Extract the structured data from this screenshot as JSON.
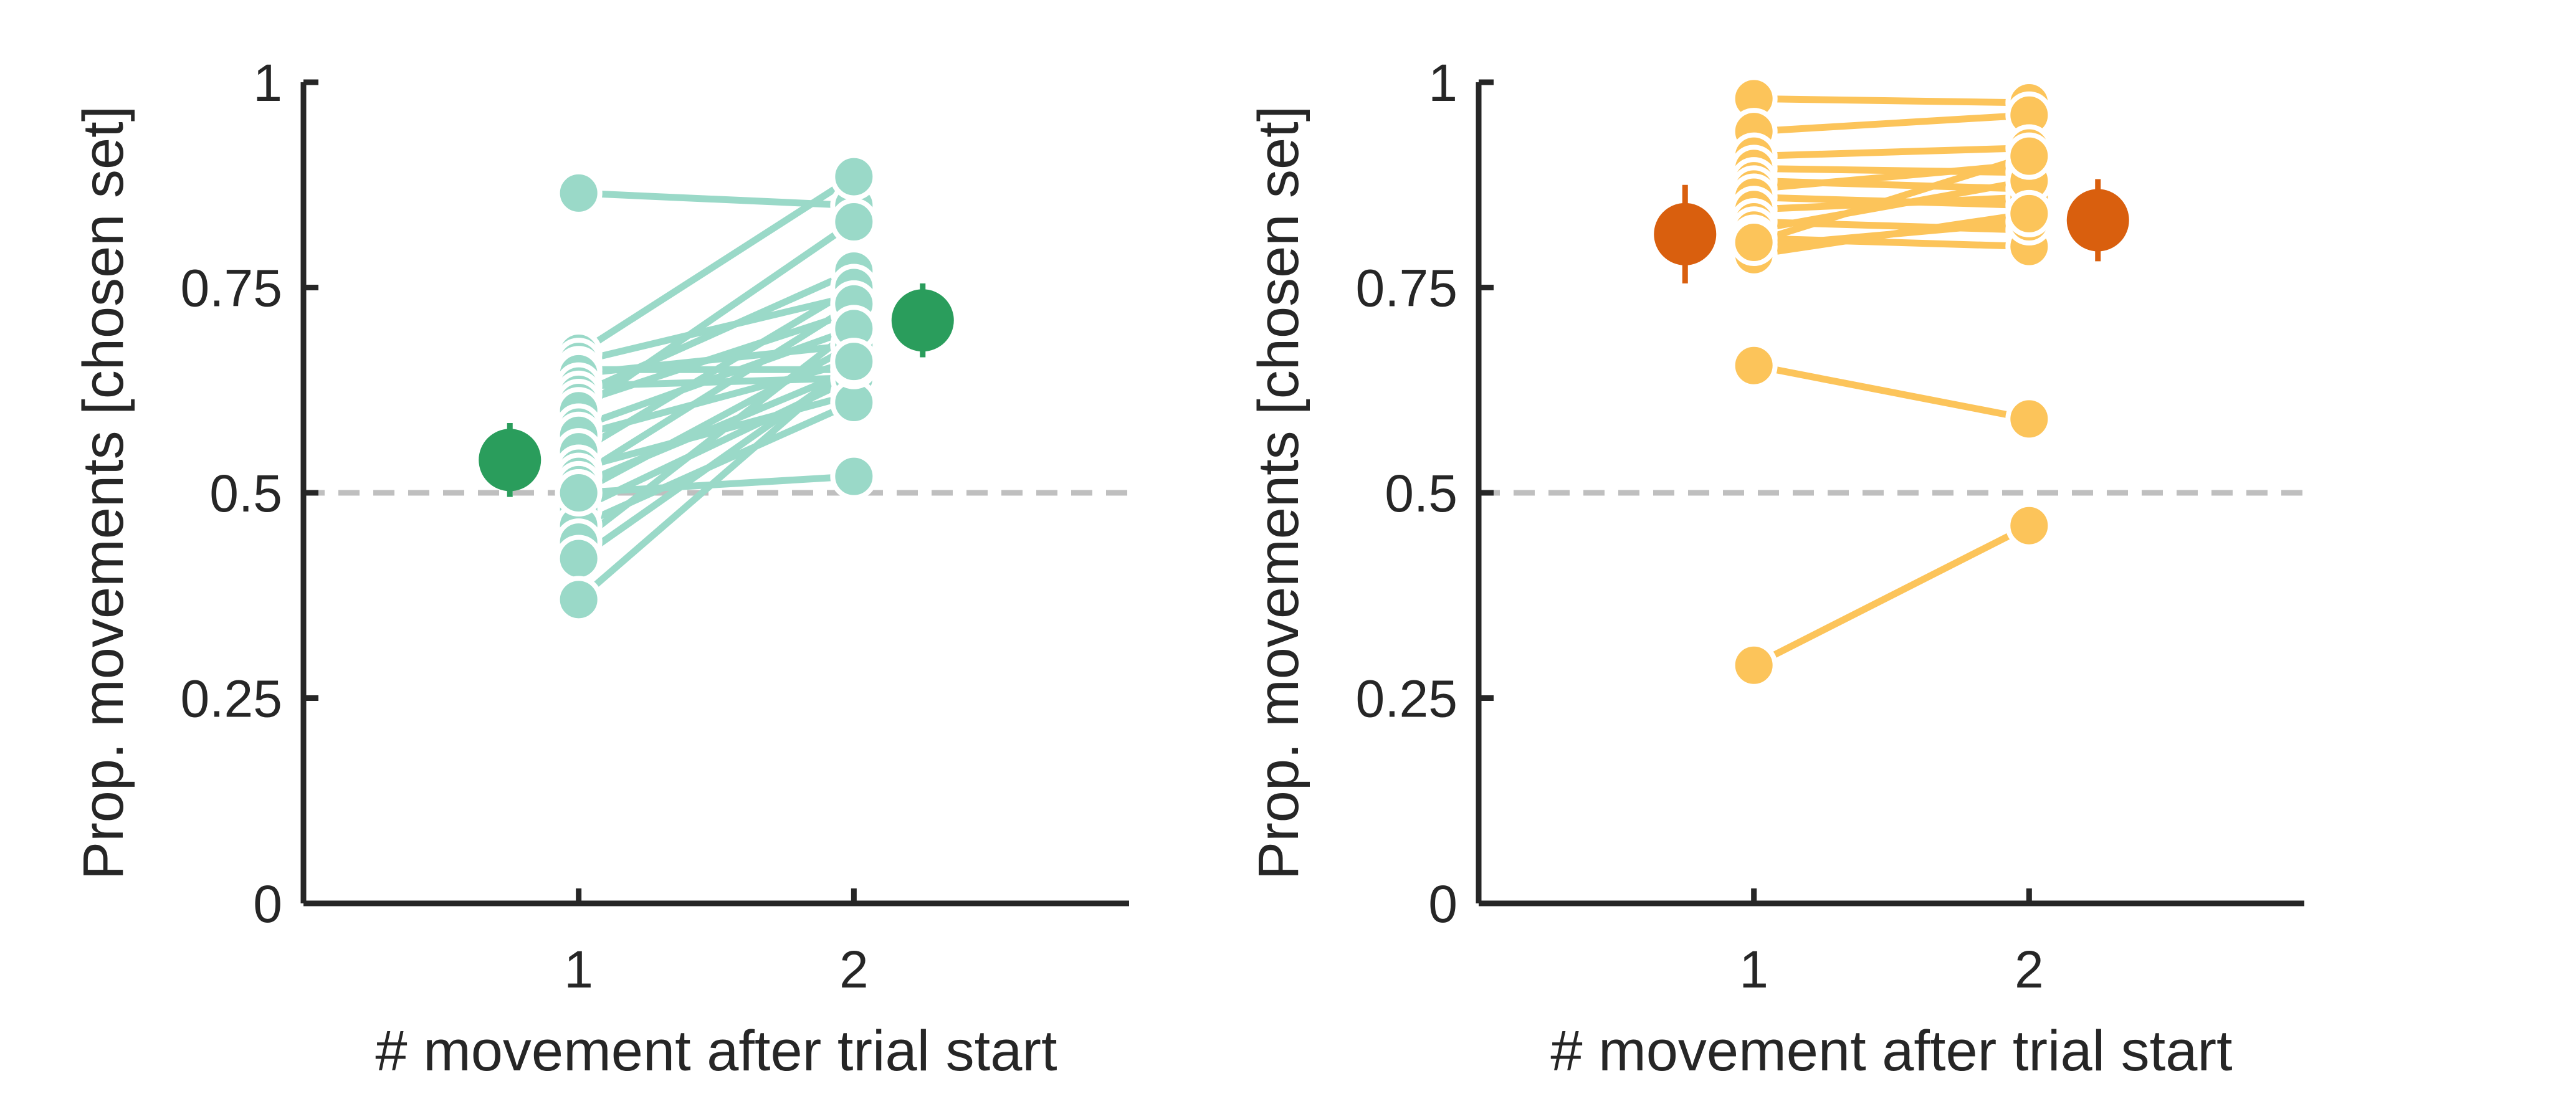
{
  "colors": {
    "left_points": "#9ad9c8",
    "left_mean": "#2a9d5c",
    "right_points": "#fcc45a",
    "right_mean": "#d95f0e",
    "axis": "#262626",
    "reference": "#bfbfbf"
  },
  "chart_data": [
    {
      "type": "scatter",
      "title": "",
      "xlabel": "# movement after trial start",
      "ylabel": "Prop. movements [chosen set]",
      "xlim": [
        0,
        3
      ],
      "ylim": [
        0,
        1
      ],
      "xticks": [
        1,
        2
      ],
      "xtick_labels": [
        "1",
        "2"
      ],
      "yticks": [
        0,
        0.25,
        0.5,
        0.75,
        1
      ],
      "ytick_labels": [
        "0",
        "0.25",
        "0.5",
        "0.75",
        "1"
      ],
      "reference_line": 0.5,
      "paired": [
        [
          0.865,
          0.85
        ],
        [
          0.67,
          0.885
        ],
        [
          0.66,
          0.74
        ],
        [
          0.65,
          0.65
        ],
        [
          0.645,
          0.68
        ],
        [
          0.63,
          0.64
        ],
        [
          0.62,
          0.77
        ],
        [
          0.61,
          0.72
        ],
        [
          0.6,
          0.83
        ],
        [
          0.58,
          0.7
        ],
        [
          0.57,
          0.66
        ],
        [
          0.55,
          0.75
        ],
        [
          0.53,
          0.62
        ],
        [
          0.52,
          0.73
        ],
        [
          0.51,
          0.65
        ],
        [
          0.5,
          0.68
        ],
        [
          0.48,
          0.64
        ],
        [
          0.46,
          0.61
        ],
        [
          0.44,
          0.7
        ],
        [
          0.42,
          0.655
        ],
        [
          0.5,
          0.52
        ],
        [
          0.37,
          0.66
        ]
      ],
      "means": [
        {
          "x": 0.75,
          "y": 0.54,
          "err": 0.045
        },
        {
          "x": 2.25,
          "y": 0.71,
          "err": 0.045
        }
      ]
    },
    {
      "type": "scatter",
      "title": "",
      "xlabel": "# movement after trial start",
      "ylabel": "Prop. movements [chosen set]",
      "xlim": [
        0,
        3
      ],
      "ylim": [
        0,
        1
      ],
      "xticks": [
        1,
        2
      ],
      "xtick_labels": [
        "1",
        "2"
      ],
      "yticks": [
        0,
        0.25,
        0.5,
        0.75,
        1
      ],
      "ytick_labels": [
        "0",
        "0.25",
        "0.5",
        "0.75",
        "1"
      ],
      "reference_line": 0.5,
      "paired": [
        [
          0.98,
          0.975
        ],
        [
          0.94,
          0.96
        ],
        [
          0.91,
          0.92
        ],
        [
          0.895,
          0.89
        ],
        [
          0.88,
          0.87
        ],
        [
          0.87,
          0.9
        ],
        [
          0.86,
          0.85
        ],
        [
          0.845,
          0.86
        ],
        [
          0.83,
          0.82
        ],
        [
          0.82,
          0.88
        ],
        [
          0.81,
          0.8
        ],
        [
          0.8,
          0.83
        ],
        [
          0.79,
          0.84
        ],
        [
          0.805,
          0.91
        ],
        [
          0.655,
          0.59
        ],
        [
          0.29,
          0.46
        ]
      ],
      "means": [
        {
          "x": 0.75,
          "y": 0.815,
          "err": 0.06
        },
        {
          "x": 2.25,
          "y": 0.832,
          "err": 0.05
        }
      ]
    }
  ]
}
